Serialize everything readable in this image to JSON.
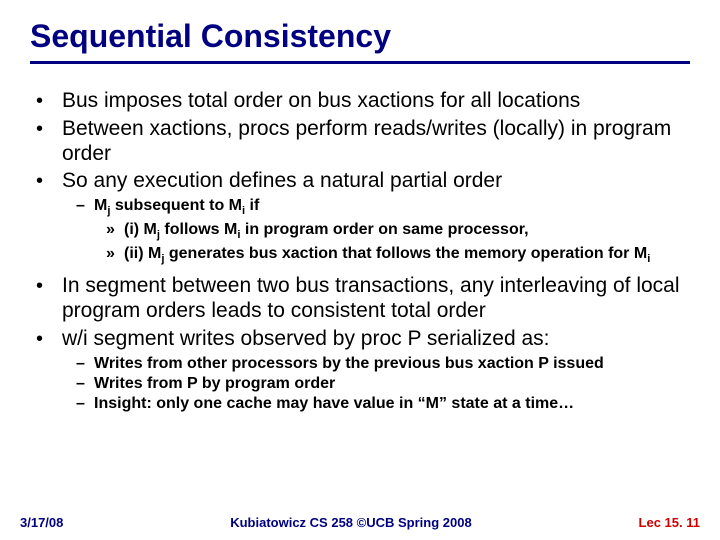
{
  "title": "Sequential Consistency",
  "bullets": {
    "b1": "Bus imposes total order on bus xactions for all locations",
    "b2": "Between xactions, procs perform reads/writes (locally) in program order",
    "b3": "So any execution defines a natural partial order",
    "b4": "In segment between two bus transactions, any interleaving of local program orders leads to consistent total order",
    "b5": "w/i segment writes observed by proc P serialized as:"
  },
  "subs": {
    "s1_prefix": "M",
    "s1_sub1": "j",
    "s1_mid": " subsequent to M",
    "s1_sub2": "i",
    "s1_suffix": " if",
    "s2a_prefix": "(i) M",
    "s2a_sub1": "j",
    "s2a_mid": " follows M",
    "s2a_sub2": "i",
    "s2a_suffix": " in program order on same processor,",
    "s2b_prefix": "(ii) M",
    "s2b_sub1": "j",
    "s2b_mid": " generates bus xaction that follows the memory operation for M",
    "s2b_sub2": "i",
    "s3": "Writes from other processors by the previous bus xaction P issued",
    "s4": "Writes from P by program order",
    "s5": "Insight: only one cache may have value in “M” state at a time…"
  },
  "footer": {
    "date": "3/17/08",
    "mid": "Kubiatowicz CS 258 ©UCB Spring 2008",
    "lec": "Lec 15. 11"
  },
  "glyphs": {
    "bullet": "•",
    "dash": "–",
    "raquo": "»"
  }
}
